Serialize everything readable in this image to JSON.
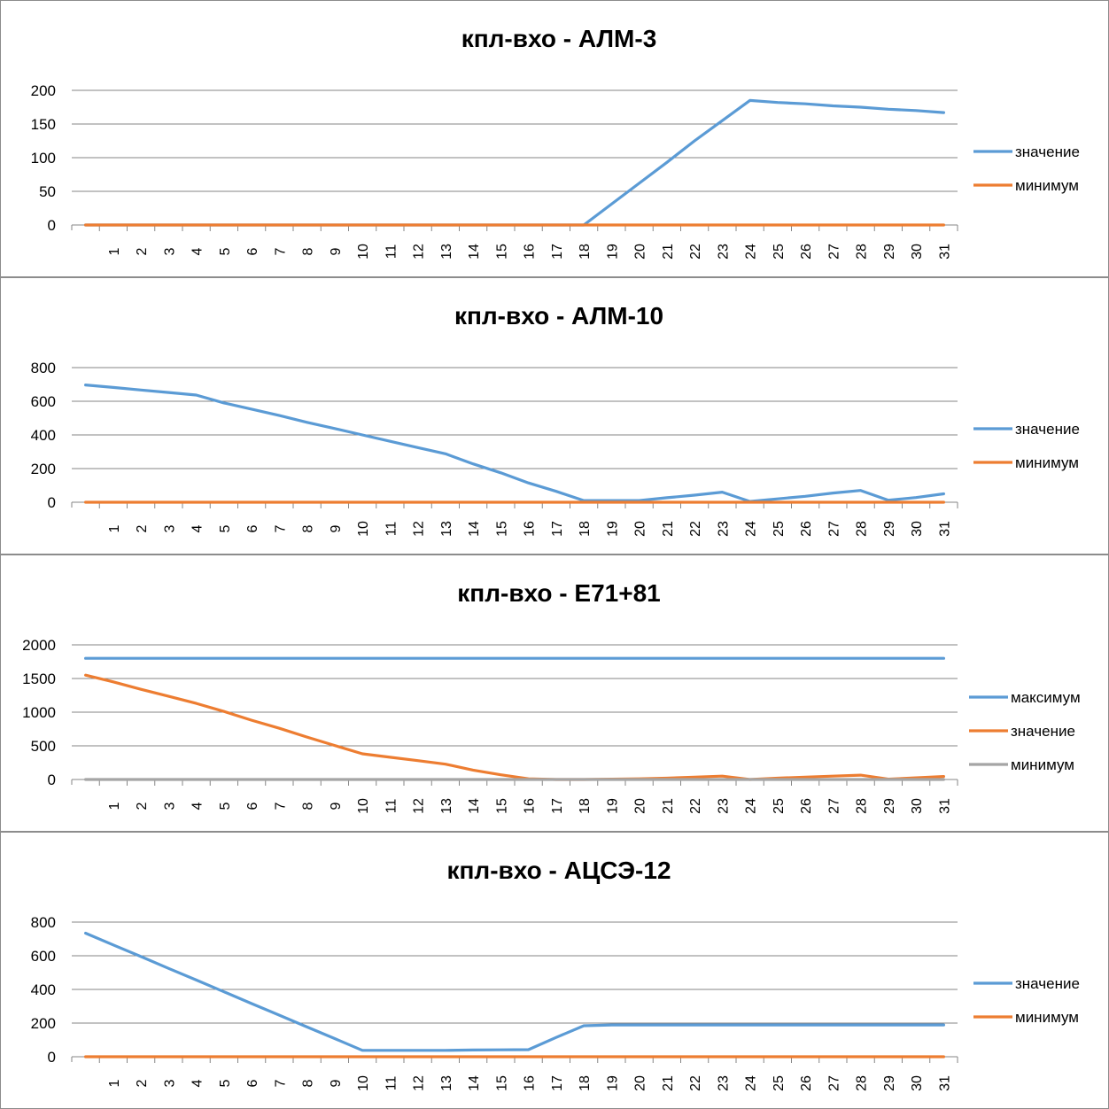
{
  "chart_data": [
    {
      "type": "line",
      "title": "кпл-вхо - АЛМ-3",
      "categories": [
        "",
        "1",
        "2",
        "3",
        "4",
        "5",
        "6",
        "7",
        "8",
        "9",
        "10",
        "11",
        "12",
        "13",
        "14",
        "15",
        "16",
        "17",
        "18",
        "19",
        "20",
        "21",
        "22",
        "23",
        "24",
        "25",
        "26",
        "27",
        "28",
        "29",
        "30",
        "31"
      ],
      "ylim": [
        0,
        200
      ],
      "yticks": [
        0,
        50,
        100,
        150,
        200
      ],
      "grid": true,
      "legend_position": "right",
      "series": [
        {
          "name": "значение",
          "color": "#5B9BD5",
          "values": [
            0,
            0,
            0,
            0,
            0,
            0,
            0,
            0,
            0,
            0,
            0,
            0,
            0,
            0,
            0,
            0,
            0,
            0,
            0,
            31,
            62,
            93,
            125,
            155,
            185,
            182,
            180,
            177,
            175,
            172,
            170,
            167
          ]
        },
        {
          "name": "минимум",
          "color": "#ED7D31",
          "values": [
            0,
            0,
            0,
            0,
            0,
            0,
            0,
            0,
            0,
            0,
            0,
            0,
            0,
            0,
            0,
            0,
            0,
            0,
            0,
            0,
            0,
            0,
            0,
            0,
            0,
            0,
            0,
            0,
            0,
            0,
            0,
            0
          ]
        }
      ]
    },
    {
      "type": "line",
      "title": "кпл-вхо - АЛМ-10",
      "categories": [
        "",
        "1",
        "2",
        "3",
        "4",
        "5",
        "6",
        "7",
        "8",
        "9",
        "10",
        "11",
        "12",
        "13",
        "14",
        "15",
        "16",
        "17",
        "18",
        "19",
        "20",
        "21",
        "22",
        "23",
        "24",
        "25",
        "26",
        "27",
        "28",
        "29",
        "30",
        "31"
      ],
      "ylim": [
        0,
        800
      ],
      "yticks": [
        0,
        200,
        400,
        600,
        800
      ],
      "grid": true,
      "legend_position": "right",
      "series": [
        {
          "name": "значение",
          "color": "#5B9BD5",
          "values": [
            697,
            682,
            667,
            652,
            637,
            590,
            553,
            515,
            475,
            438,
            400,
            362,
            325,
            288,
            228,
            175,
            115,
            65,
            10,
            10,
            10,
            27,
            42,
            60,
            5,
            20,
            35,
            55,
            70,
            12,
            28,
            50
          ]
        },
        {
          "name": "минимум",
          "color": "#ED7D31",
          "values": [
            0,
            0,
            0,
            0,
            0,
            0,
            0,
            0,
            0,
            0,
            0,
            0,
            0,
            0,
            0,
            0,
            0,
            0,
            0,
            0,
            0,
            0,
            0,
            0,
            0,
            0,
            0,
            0,
            0,
            0,
            0,
            0
          ]
        }
      ]
    },
    {
      "type": "line",
      "title": "кпл-вхо - Е71+81",
      "categories": [
        "",
        "1",
        "2",
        "3",
        "4",
        "5",
        "6",
        "7",
        "8",
        "9",
        "10",
        "11",
        "12",
        "13",
        "14",
        "15",
        "16",
        "17",
        "18",
        "19",
        "20",
        "21",
        "22",
        "23",
        "24",
        "25",
        "26",
        "27",
        "28",
        "29",
        "30",
        "31"
      ],
      "ylim": [
        0,
        2000
      ],
      "yticks": [
        0,
        500,
        1000,
        1500,
        2000
      ],
      "grid": true,
      "legend_position": "right",
      "series": [
        {
          "name": "максимум",
          "color": "#5B9BD5",
          "values": [
            1800,
            1800,
            1800,
            1800,
            1800,
            1800,
            1800,
            1800,
            1800,
            1800,
            1800,
            1800,
            1800,
            1800,
            1800,
            1800,
            1800,
            1800,
            1800,
            1800,
            1800,
            1800,
            1800,
            1800,
            1800,
            1800,
            1800,
            1800,
            1800,
            1800,
            1800,
            1800
          ]
        },
        {
          "name": "значение",
          "color": "#ED7D31",
          "values": [
            1550,
            1450,
            1340,
            1235,
            1130,
            1010,
            880,
            760,
            630,
            505,
            382,
            330,
            280,
            228,
            140,
            70,
            10,
            0,
            0,
            5,
            10,
            20,
            35,
            50,
            0,
            20,
            35,
            50,
            65,
            5,
            25,
            45
          ]
        },
        {
          "name": "минимум",
          "color": "#A5A5A5",
          "values": [
            0,
            0,
            0,
            0,
            0,
            0,
            0,
            0,
            0,
            0,
            0,
            0,
            0,
            0,
            0,
            0,
            0,
            0,
            0,
            0,
            0,
            0,
            0,
            0,
            0,
            0,
            0,
            0,
            0,
            0,
            0,
            0
          ]
        }
      ]
    },
    {
      "type": "line",
      "title": "кпл-вхо - АЦСЭ-12",
      "categories": [
        "",
        "1",
        "2",
        "3",
        "4",
        "5",
        "6",
        "7",
        "8",
        "9",
        "10",
        "11",
        "12",
        "13",
        "14",
        "15",
        "16",
        "17",
        "18",
        "19",
        "20",
        "21",
        "22",
        "23",
        "24",
        "25",
        "26",
        "27",
        "28",
        "29",
        "30",
        "31"
      ],
      "ylim": [
        0,
        800
      ],
      "yticks": [
        0,
        200,
        400,
        600,
        800
      ],
      "grid": true,
      "legend_position": "right",
      "series": [
        {
          "name": "значение",
          "color": "#5B9BD5",
          "values": [
            734,
            664,
            595,
            525,
            456,
            386,
            316,
            247,
            177,
            108,
            38,
            38,
            38,
            38,
            40,
            41,
            42,
            115,
            184,
            189,
            189,
            189,
            189,
            189,
            189,
            189,
            189,
            189,
            189,
            189,
            189,
            189
          ]
        },
        {
          "name": "минимум",
          "color": "#ED7D31",
          "values": [
            0,
            0,
            0,
            0,
            0,
            0,
            0,
            0,
            0,
            0,
            0,
            0,
            0,
            0,
            0,
            0,
            0,
            0,
            0,
            0,
            0,
            0,
            0,
            0,
            0,
            0,
            0,
            0,
            0,
            0,
            0,
            0
          ]
        }
      ]
    }
  ]
}
